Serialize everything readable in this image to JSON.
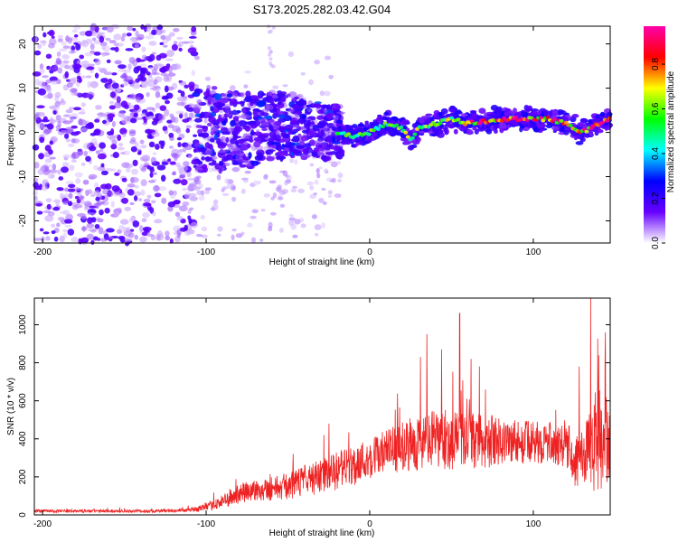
{
  "title": "S173.2025.282.03.42.G04",
  "colors": {
    "snr_line": "#ee2222",
    "axis": "#000000",
    "background": "#ffffff"
  },
  "chart_data": [
    {
      "type": "heatmap",
      "xlabel": "Height of straight line (km)",
      "ylabel": "Frequency (Hz)",
      "xlim": [
        -205,
        147
      ],
      "ylim": [
        -25,
        24
      ],
      "xticks": [
        -200,
        -100,
        0,
        100
      ],
      "yticks": [
        -20,
        -10,
        0,
        10,
        20
      ],
      "colorbar": {
        "label": "Normalized spectral amplitude",
        "range": [
          0,
          0.97
        ],
        "ticks": [
          "0.0",
          "0.2",
          "0.4",
          "0.6",
          "0.8"
        ],
        "tick_values": [
          0.0,
          0.2,
          0.4,
          0.6,
          0.8
        ],
        "stops": [
          "#ffffff",
          "#6600ff",
          "#0000ff",
          "#00ffff",
          "#00ff00",
          "#ffff00",
          "#ff0000",
          "#ff00aa"
        ]
      },
      "ridge": {
        "x": [
          -100,
          -80,
          -60,
          -40,
          -20,
          -10,
          0,
          10,
          20,
          25,
          30,
          40,
          50,
          60,
          80,
          100,
          110,
          120,
          130,
          140,
          147
        ],
        "y": [
          1,
          0,
          2,
          1,
          0,
          -1,
          0,
          2,
          1,
          -2,
          1,
          2,
          3,
          2,
          3,
          3,
          3,
          2,
          0,
          2,
          3
        ]
      }
    },
    {
      "type": "line",
      "xlabel": "Height of straight line (km)",
      "ylabel": "SNR (10 * v/v)",
      "xlim": [
        -205,
        147
      ],
      "ylim": [
        0,
        1140
      ],
      "xticks": [
        -200,
        -100,
        0,
        100
      ],
      "yticks": [
        0,
        200,
        400,
        600,
        800,
        1000
      ],
      "envelope": {
        "x": [
          -205,
          -130,
          -110,
          -100,
          -90,
          -80,
          -70,
          -60,
          -50,
          -40,
          -30,
          -20,
          -10,
          0,
          10,
          20,
          30,
          40,
          50,
          60,
          70,
          80,
          90,
          100,
          110,
          120,
          125,
          130,
          135,
          140,
          147
        ],
        "mean": [
          20,
          20,
          25,
          40,
          70,
          110,
          130,
          140,
          150,
          180,
          200,
          230,
          260,
          300,
          330,
          360,
          380,
          390,
          395,
          390,
          385,
          390,
          385,
          380,
          380,
          360,
          260,
          330,
          340,
          320,
          450
        ],
        "spread": [
          8,
          8,
          10,
          20,
          35,
          55,
          60,
          65,
          70,
          80,
          90,
          100,
          110,
          110,
          120,
          130,
          150,
          160,
          160,
          150,
          140,
          130,
          120,
          110,
          110,
          110,
          120,
          160,
          200,
          250,
          250
        ]
      },
      "spikes": [
        {
          "x": 31,
          "y": 830
        },
        {
          "x": 35,
          "y": 950
        },
        {
          "x": 55,
          "y": 1060
        },
        {
          "x": 44,
          "y": 870
        },
        {
          "x": 62,
          "y": 820
        },
        {
          "x": 67,
          "y": 780
        },
        {
          "x": 135,
          "y": 1140
        },
        {
          "x": 144,
          "y": 960
        },
        {
          "x": 128,
          "y": 780
        },
        {
          "x": 140,
          "y": 840
        }
      ]
    }
  ]
}
